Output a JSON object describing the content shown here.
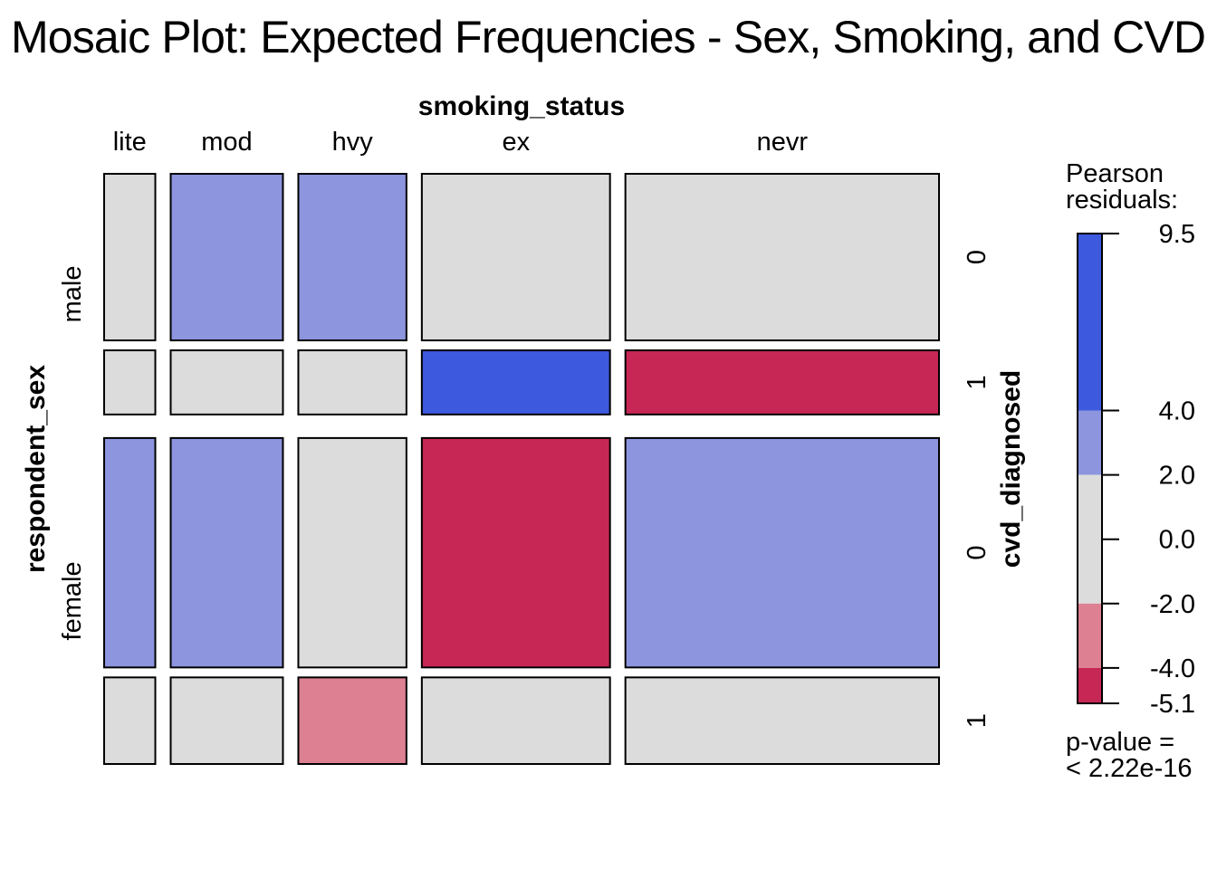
{
  "chart_data": {
    "type": "mosaic",
    "title": "Mosaic Plot: Expected Frequencies - Sex, Smoking, and CVD",
    "top_variable": "smoking_status",
    "left_variable": "respondent_sex",
    "right_variable": "cvd_diagnosed",
    "smoking_levels": [
      "lite",
      "mod",
      "hvy",
      "ex",
      "nevr"
    ],
    "smoking_proportions": [
      0.062,
      0.136,
      0.131,
      0.228,
      0.38
    ],
    "sex_levels": [
      "male",
      "female"
    ],
    "sex_proportions": [
      0.422,
      0.578
    ],
    "cvd_levels": [
      "0",
      "1"
    ],
    "cvd_proportions_within_sex": {
      "male": [
        0.722,
        0.278
      ],
      "female": [
        0.726,
        0.274
      ]
    },
    "cells": [
      {
        "sex": "male",
        "cvd": "0",
        "fills": [
          "neutral",
          "pos_mid",
          "pos_mid",
          "neutral",
          "neutral"
        ]
      },
      {
        "sex": "male",
        "cvd": "1",
        "fills": [
          "neutral",
          "neutral",
          "neutral",
          "pos_high",
          "neg_high"
        ]
      },
      {
        "sex": "female",
        "cvd": "0",
        "fills": [
          "pos_mid",
          "pos_mid",
          "neutral",
          "neg_high",
          "pos_mid"
        ]
      },
      {
        "sex": "female",
        "cvd": "1",
        "fills": [
          "neutral",
          "neutral",
          "neg_mid",
          "neutral",
          "neutral"
        ]
      }
    ],
    "legend": {
      "title_line1": "Pearson",
      "title_line2": "residuals:",
      "min": -5.1,
      "max": 9.5,
      "ticks": [
        "9.5",
        "4.0",
        "2.0",
        "0.0",
        "-2.0",
        "-4.0",
        "-5.1"
      ],
      "tick_values": [
        9.5,
        4.0,
        2.0,
        0.0,
        -2.0,
        -4.0,
        -5.1
      ],
      "bands": [
        {
          "from": 4.0,
          "to": 9.5,
          "color": "#3d59dd"
        },
        {
          "from": 2.0,
          "to": 4.0,
          "color": "#8c95dd"
        },
        {
          "from": -2.0,
          "to": 2.0,
          "color": "#dcdcdc"
        },
        {
          "from": -4.0,
          "to": -2.0,
          "color": "#dc8092"
        },
        {
          "from": -5.1,
          "to": -4.0,
          "color": "#c72755"
        }
      ],
      "pvalue_line1": "p-value =",
      "pvalue_line2": "< 2.22e-16"
    },
    "colors": {
      "pos_high": "#3d59dd",
      "pos_mid": "#8c95dd",
      "neutral": "#dcdcdc",
      "neg_mid": "#dc8092",
      "neg_high": "#c72755"
    }
  }
}
